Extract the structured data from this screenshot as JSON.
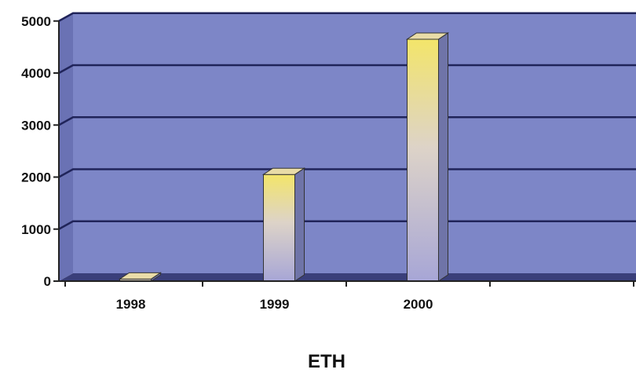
{
  "chart_data": {
    "type": "bar",
    "categories": [
      "1998",
      "1999",
      "2000"
    ],
    "values": [
      40,
      2050,
      4650
    ],
    "title": "",
    "xlabel": "ETH",
    "ylabel": "",
    "ylim": [
      0,
      5000
    ],
    "yticks": [
      "0",
      "1000",
      "2000",
      "3000",
      "4000",
      "5000"
    ],
    "grid": true,
    "legend": "none",
    "colors": {
      "plot_wall": "#7d86c7",
      "gridline": "#20245a",
      "floor": "#3a3f7a",
      "bar_top": "#f3e56a",
      "bar_bottom": "#a7a6d6",
      "bar_side": "#6f74a8"
    }
  }
}
